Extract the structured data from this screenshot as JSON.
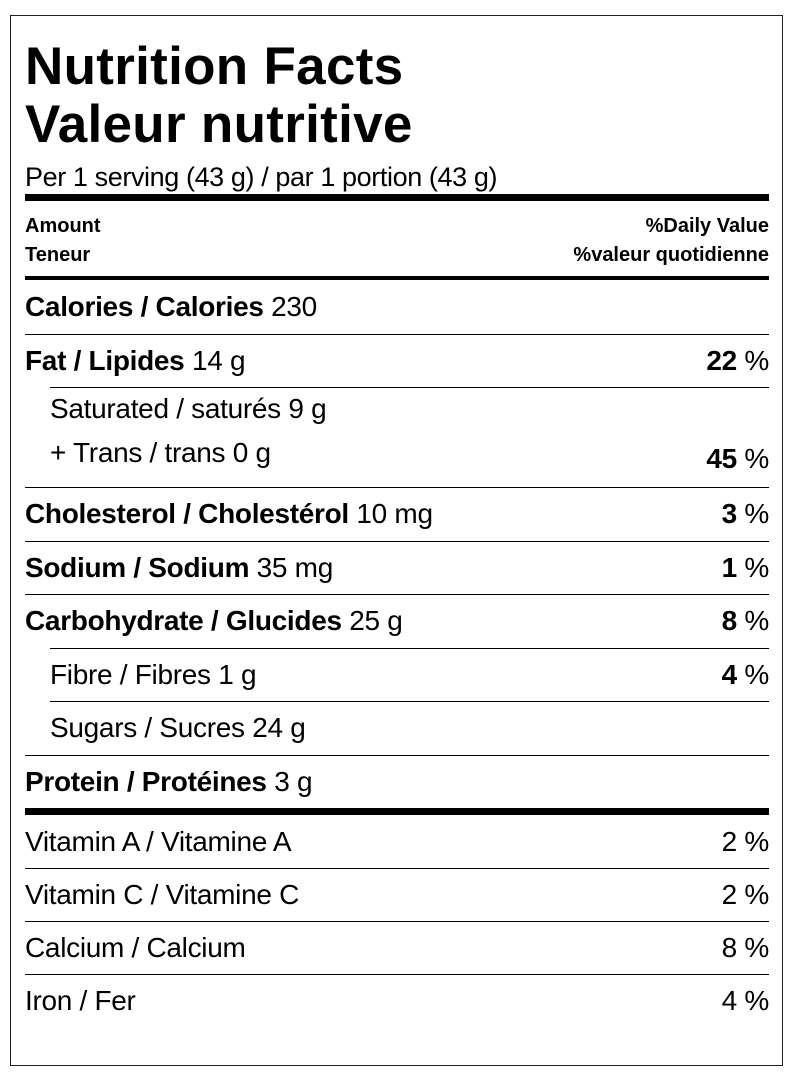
{
  "header": {
    "title_en": "Nutrition Facts",
    "title_fr": "Valeur nutritive",
    "serving": "Per 1 serving (43 g) / par 1 portion (43 g)"
  },
  "column_headers": {
    "amount_en": "Amount",
    "amount_fr": "Teneur",
    "dv_en": "%Daily Value",
    "dv_fr": "%valeur quotidienne"
  },
  "percent_sign": "%",
  "nutrients": [
    {
      "style": "main",
      "name": "Calories / Calories",
      "amount": "230"
    },
    {
      "style": "main",
      "name": "Fat / Lipides",
      "amount": "14 g",
      "dv": 22
    },
    {
      "style": "sub",
      "lines": [
        {
          "name": "Saturated / saturés",
          "amount": "9 g"
        },
        {
          "name": "+ Trans / trans",
          "amount": "0 g"
        }
      ],
      "dv": 45
    },
    {
      "style": "main",
      "name": "Cholesterol / Cholestérol",
      "amount": "10 mg",
      "dv": 3
    },
    {
      "style": "main",
      "name": "Sodium / Sodium",
      "amount": "35 mg",
      "dv": 1
    },
    {
      "style": "main",
      "name": "Carbohydrate / Glucides",
      "amount": "25 g",
      "dv": 8
    },
    {
      "style": "sub",
      "name": "Fibre / Fibres",
      "amount": "1 g",
      "dv": 4
    },
    {
      "style": "sub",
      "name": "Sugars / Sucres",
      "amount": "24 g"
    },
    {
      "style": "main",
      "name": "Protein / Protéines",
      "amount": "3 g"
    }
  ],
  "vitamins": [
    {
      "name": "Vitamin A / Vitamine A",
      "dv": 2
    },
    {
      "name": "Vitamin C / Vitamine C",
      "dv": 2
    },
    {
      "name": "Calcium / Calcium",
      "dv": 8
    },
    {
      "name": "Iron / Fer",
      "dv": 4
    }
  ]
}
